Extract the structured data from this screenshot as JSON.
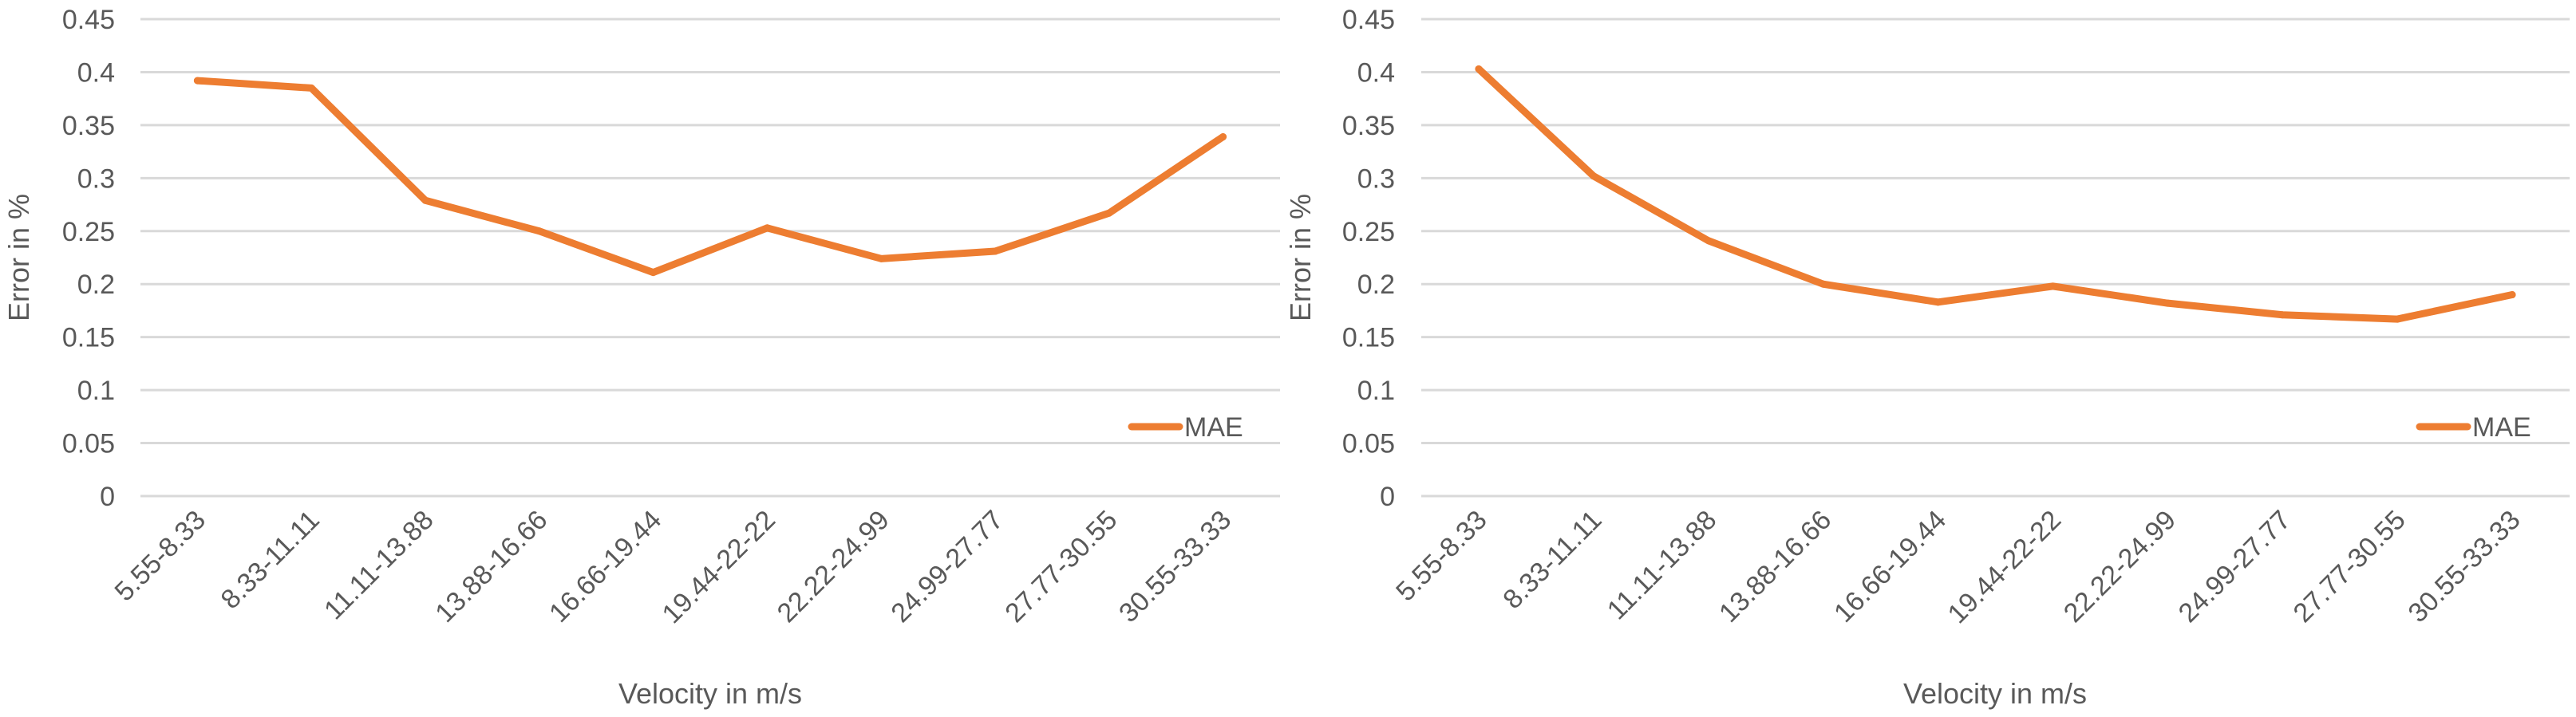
{
  "chart_data": [
    {
      "type": "line",
      "xlabel": "Velocity in m/s",
      "ylabel": "Error in %",
      "ylim": [
        0,
        0.45
      ],
      "yticks": [
        "0",
        "0.05",
        "0.1",
        "0.15",
        "0.2",
        "0.25",
        "0.3",
        "0.35",
        "0.4",
        "0.45"
      ],
      "grid": true,
      "legend": "bottom-right",
      "categories": [
        "5.55-8.33",
        "8.33-11.11",
        "11.11-13.88",
        "13.88-16.66",
        "16.66-19.44",
        "19.44-22-22",
        "22.22-24.99",
        "24.99-27.77",
        "27.77-30.55",
        "30.55-33.33"
      ],
      "series": [
        {
          "name": "MAE",
          "color": "#ED7D31",
          "values": [
            0.392,
            0.385,
            0.279,
            0.25,
            0.211,
            0.253,
            0.224,
            0.231,
            0.267,
            0.339
          ]
        }
      ]
    },
    {
      "type": "line",
      "xlabel": "Velocity in m/s",
      "ylabel": "Error in %",
      "ylim": [
        0,
        0.45
      ],
      "yticks": [
        "0",
        "0.05",
        "0.1",
        "0.15",
        "0.2",
        "0.25",
        "0.3",
        "0.35",
        "0.4",
        "0.45"
      ],
      "grid": true,
      "legend": "bottom-right",
      "categories": [
        "5.55-8.33",
        "8.33-11.11",
        "11.11-13.88",
        "13.88-16.66",
        "16.66-19.44",
        "19.44-22-22",
        "22.22-24.99",
        "24.99-27.77",
        "27.77-30.55",
        "30.55-33.33"
      ],
      "series": [
        {
          "name": "MAE",
          "color": "#ED7D31",
          "values": [
            0.403,
            0.302,
            0.241,
            0.2,
            0.183,
            0.198,
            0.182,
            0.171,
            0.167,
            0.19
          ]
        }
      ]
    }
  ]
}
